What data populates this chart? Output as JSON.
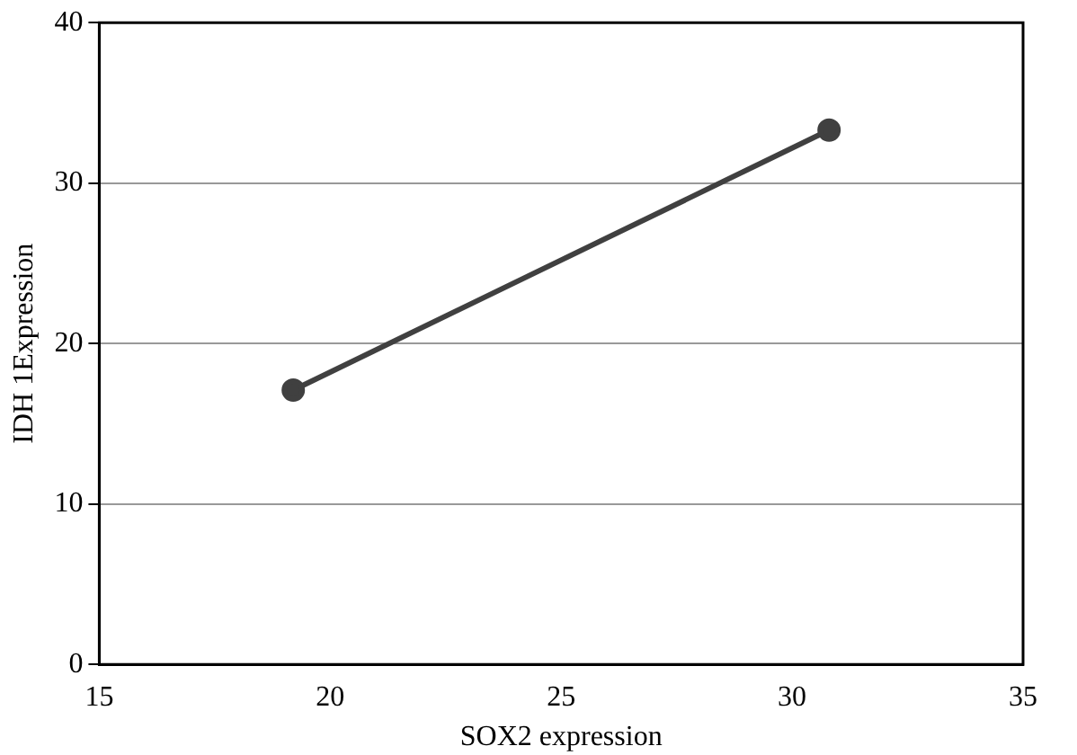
{
  "chart_data": {
    "type": "line",
    "xlabel": "SOX2 expression",
    "ylabel": "IDH 1Expression",
    "series": [
      {
        "color": "#404040",
        "x": [
          19.2,
          30.8
        ],
        "values": [
          17.1,
          33.3
        ]
      }
    ],
    "xlim": [
      15,
      35
    ],
    "xticks": [
      15,
      20,
      25,
      30,
      35
    ],
    "ylim": [
      0,
      40
    ],
    "yticks": [
      0,
      10,
      20,
      30,
      40
    ],
    "grid": "y",
    "legend": false,
    "marker": "circle",
    "line_style": "solid"
  }
}
